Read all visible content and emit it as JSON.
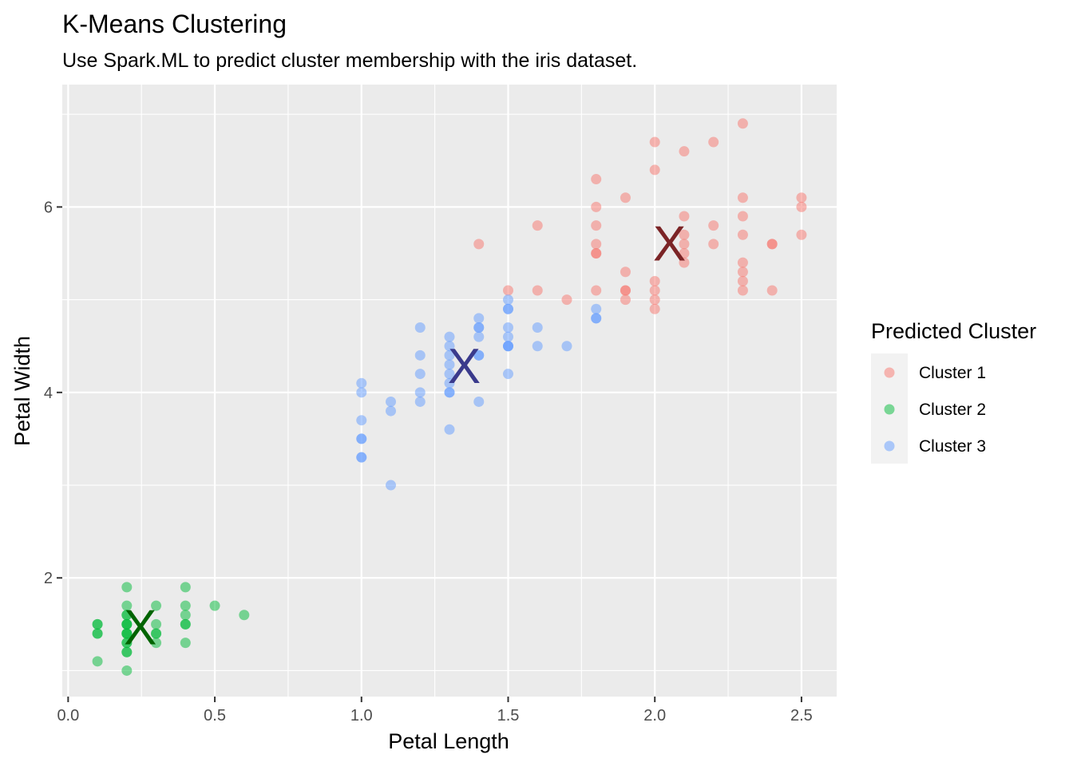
{
  "chart_data": {
    "type": "scatter",
    "title": "K-Means Clustering",
    "subtitle": "Use Spark.ML to predict cluster membership with the iris dataset.",
    "xlabel": "Petal Length",
    "ylabel": "Petal Width",
    "xlim": [
      -0.02,
      2.62
    ],
    "ylim": [
      0.72,
      7.32
    ],
    "x_ticks": [
      0.0,
      0.5,
      1.0,
      1.5,
      2.0,
      2.5
    ],
    "x_tick_labels": [
      "0.0",
      "0.5",
      "1.0",
      "1.5",
      "2.0",
      "2.5"
    ],
    "y_ticks": [
      2,
      4,
      6
    ],
    "y_tick_labels": [
      "2",
      "4",
      "6"
    ],
    "grid": true,
    "legend": {
      "title": "Predicted Cluster",
      "position": "right"
    },
    "series": [
      {
        "name": "Cluster 1",
        "color": "#F8766D",
        "centroid": {
          "x": 2.05,
          "y": 5.6,
          "label": "X",
          "color": "#7B2426"
        },
        "points": [
          [
            1.4,
            5.6
          ],
          [
            1.5,
            5.1
          ],
          [
            1.6,
            5.1
          ],
          [
            1.6,
            5.8
          ],
          [
            1.7,
            5.0
          ],
          [
            1.8,
            6.3
          ],
          [
            1.8,
            6.0
          ],
          [
            1.8,
            5.8
          ],
          [
            1.8,
            5.6
          ],
          [
            1.8,
            5.5
          ],
          [
            1.8,
            5.5
          ],
          [
            1.8,
            5.1
          ],
          [
            1.9,
            6.1
          ],
          [
            1.9,
            5.3
          ],
          [
            1.9,
            5.1
          ],
          [
            1.9,
            5.1
          ],
          [
            1.9,
            5.0
          ],
          [
            2.0,
            6.7
          ],
          [
            2.0,
            6.4
          ],
          [
            2.0,
            5.2
          ],
          [
            2.0,
            5.1
          ],
          [
            2.0,
            5.0
          ],
          [
            2.0,
            4.9
          ],
          [
            2.1,
            6.6
          ],
          [
            2.1,
            5.9
          ],
          [
            2.1,
            5.7
          ],
          [
            2.1,
            5.6
          ],
          [
            2.1,
            5.5
          ],
          [
            2.1,
            5.4
          ],
          [
            2.2,
            6.7
          ],
          [
            2.2,
            5.8
          ],
          [
            2.2,
            5.6
          ],
          [
            2.3,
            6.9
          ],
          [
            2.3,
            6.1
          ],
          [
            2.3,
            5.9
          ],
          [
            2.3,
            5.7
          ],
          [
            2.3,
            5.4
          ],
          [
            2.3,
            5.3
          ],
          [
            2.3,
            5.2
          ],
          [
            2.3,
            5.1
          ],
          [
            2.4,
            5.6
          ],
          [
            2.4,
            5.6
          ],
          [
            2.4,
            5.1
          ],
          [
            2.5,
            6.1
          ],
          [
            2.5,
            6.0
          ],
          [
            2.5,
            5.7
          ]
        ]
      },
      {
        "name": "Cluster 2",
        "color": "#00BA38",
        "centroid": {
          "x": 0.246,
          "y": 1.46,
          "label": "X",
          "color": "#006400"
        },
        "points": [
          [
            0.1,
            1.5
          ],
          [
            0.1,
            1.5
          ],
          [
            0.1,
            1.4
          ],
          [
            0.1,
            1.4
          ],
          [
            0.1,
            1.1
          ],
          [
            0.2,
            1.9
          ],
          [
            0.2,
            1.7
          ],
          [
            0.2,
            1.6
          ],
          [
            0.2,
            1.6
          ],
          [
            0.2,
            1.5
          ],
          [
            0.2,
            1.5
          ],
          [
            0.2,
            1.5
          ],
          [
            0.2,
            1.4
          ],
          [
            0.2,
            1.4
          ],
          [
            0.2,
            1.4
          ],
          [
            0.2,
            1.3
          ],
          [
            0.2,
            1.3
          ],
          [
            0.2,
            1.2
          ],
          [
            0.2,
            1.2
          ],
          [
            0.2,
            1.0
          ],
          [
            0.3,
            1.7
          ],
          [
            0.3,
            1.5
          ],
          [
            0.3,
            1.4
          ],
          [
            0.3,
            1.4
          ],
          [
            0.3,
            1.3
          ],
          [
            0.4,
            1.9
          ],
          [
            0.4,
            1.7
          ],
          [
            0.4,
            1.6
          ],
          [
            0.4,
            1.5
          ],
          [
            0.4,
            1.5
          ],
          [
            0.4,
            1.3
          ],
          [
            0.5,
            1.7
          ],
          [
            0.6,
            1.6
          ]
        ]
      },
      {
        "name": "Cluster 3",
        "color": "#619CFF",
        "centroid": {
          "x": 1.35,
          "y": 4.28,
          "label": "X",
          "color": "#3A3A8C"
        },
        "points": [
          [
            1.0,
            4.1
          ],
          [
            1.0,
            4.0
          ],
          [
            1.0,
            3.7
          ],
          [
            1.0,
            3.5
          ],
          [
            1.0,
            3.5
          ],
          [
            1.0,
            3.3
          ],
          [
            1.0,
            3.3
          ],
          [
            1.1,
            3.9
          ],
          [
            1.1,
            3.8
          ],
          [
            1.1,
            3.0
          ],
          [
            1.2,
            4.7
          ],
          [
            1.2,
            4.4
          ],
          [
            1.2,
            4.2
          ],
          [
            1.2,
            4.0
          ],
          [
            1.2,
            3.9
          ],
          [
            1.3,
            4.6
          ],
          [
            1.3,
            4.5
          ],
          [
            1.3,
            4.4
          ],
          [
            1.3,
            4.3
          ],
          [
            1.3,
            4.2
          ],
          [
            1.3,
            4.1
          ],
          [
            1.3,
            4.0
          ],
          [
            1.3,
            4.0
          ],
          [
            1.3,
            3.6
          ],
          [
            1.4,
            4.8
          ],
          [
            1.4,
            4.7
          ],
          [
            1.4,
            4.7
          ],
          [
            1.4,
            4.6
          ],
          [
            1.4,
            4.4
          ],
          [
            1.4,
            4.4
          ],
          [
            1.4,
            3.9
          ],
          [
            1.5,
            5.0
          ],
          [
            1.5,
            4.9
          ],
          [
            1.5,
            4.9
          ],
          [
            1.5,
            4.7
          ],
          [
            1.5,
            4.6
          ],
          [
            1.5,
            4.5
          ],
          [
            1.5,
            4.5
          ],
          [
            1.5,
            4.5
          ],
          [
            1.5,
            4.2
          ],
          [
            1.6,
            4.7
          ],
          [
            1.6,
            4.5
          ],
          [
            1.7,
            4.5
          ],
          [
            1.8,
            4.9
          ],
          [
            1.8,
            4.8
          ],
          [
            1.8,
            4.8
          ]
        ]
      }
    ]
  }
}
